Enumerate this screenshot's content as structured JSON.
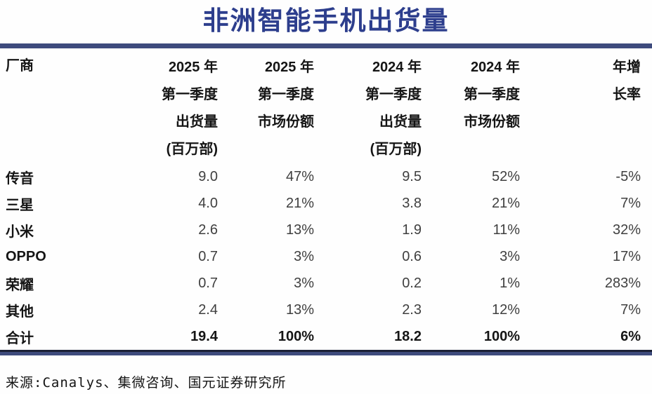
{
  "title": "非洲智能手机出货量",
  "source": "来源:Canalys、集微咨询、国元证券研究所",
  "colors": {
    "title_blue": "#2d3e8d",
    "rule_blue": "#3e4b7d",
    "rule_edge_dark": "#1b2035",
    "header_text": "#151515",
    "value_text": "#3f3f3f"
  },
  "table": {
    "vendor_header": "厂商",
    "column_headers": [
      [
        "2025 年",
        "第一季度",
        "出货量",
        "(百万部)"
      ],
      [
        "2025 年",
        "第一季度",
        "市场份额"
      ],
      [
        "2024 年",
        "第一季度",
        "出货量",
        "(百万部)"
      ],
      [
        "2024 年",
        "第一季度",
        "市场份额"
      ],
      [
        "年增",
        "长率"
      ]
    ],
    "rows": [
      {
        "vendor": "传音",
        "values": [
          "9.0",
          "47%",
          "9.5",
          "52%",
          "-5%"
        ],
        "total": false
      },
      {
        "vendor": "三星",
        "values": [
          "4.0",
          "21%",
          "3.8",
          "21%",
          "7%"
        ],
        "total": false
      },
      {
        "vendor": "小米",
        "values": [
          "2.6",
          "13%",
          "1.9",
          "11%",
          "32%"
        ],
        "total": false
      },
      {
        "vendor": "OPPO",
        "values": [
          "0.7",
          "3%",
          "0.6",
          "3%",
          "17%"
        ],
        "total": false
      },
      {
        "vendor": "荣耀",
        "values": [
          "0.7",
          "3%",
          "0.2",
          "1%",
          "283%"
        ],
        "total": false
      },
      {
        "vendor": "其他",
        "values": [
          "2.4",
          "13%",
          "2.3",
          "12%",
          "7%"
        ],
        "total": false
      },
      {
        "vendor": "合计",
        "values": [
          "19.4",
          "100%",
          "18.2",
          "100%",
          "6%"
        ],
        "total": true
      }
    ]
  },
  "chart_data": {
    "type": "table",
    "title": "非洲智能手机出货量",
    "columns": [
      "厂商",
      "2025年第一季度出货量(百万部)",
      "2025年第一季度市场份额",
      "2024年第一季度出货量(百万部)",
      "2024年第一季度市场份额",
      "年增长率"
    ],
    "rows": [
      [
        "传音",
        9.0,
        "47%",
        9.5,
        "52%",
        "-5%"
      ],
      [
        "三星",
        4.0,
        "21%",
        3.8,
        "21%",
        "7%"
      ],
      [
        "小米",
        2.6,
        "13%",
        1.9,
        "11%",
        "32%"
      ],
      [
        "OPPO",
        0.7,
        "3%",
        0.6,
        "3%",
        "17%"
      ],
      [
        "荣耀",
        0.7,
        "3%",
        0.2,
        "1%",
        "283%"
      ],
      [
        "其他",
        2.4,
        "13%",
        2.3,
        "12%",
        "7%"
      ],
      [
        "合计",
        19.4,
        "100%",
        18.2,
        "100%",
        "6%"
      ]
    ],
    "source": "来源:Canalys、集微咨询、国元证券研究所"
  }
}
